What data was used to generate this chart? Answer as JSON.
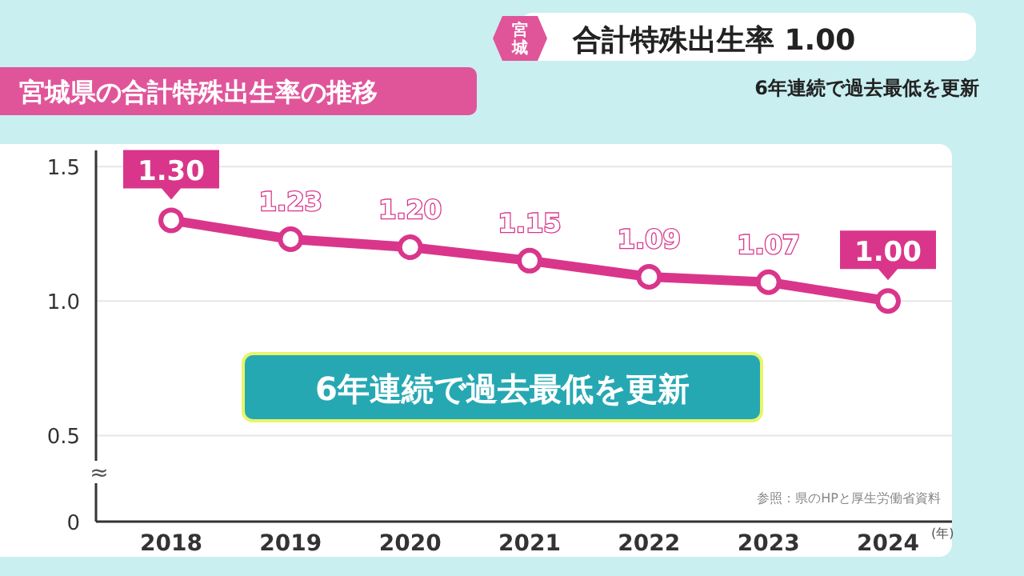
{
  "chart_data": {
    "type": "line",
    "title": "宮城県の合計特殊出生率の推移",
    "subtitle": "6年連続で過去最低を更新",
    "xlabel": "(年)",
    "annotations": [
      "宮城",
      "合計特殊出生率 1.00",
      "6年連続で過去最低を更新",
      "参照：県のHPと厚生労働省資料",
      "≈"
    ],
    "categories": [
      "2018",
      "2019",
      "2020",
      "2021",
      "2022",
      "2023",
      "2024"
    ],
    "series": [
      {
        "color": "#d9368b",
        "values": [
          1.3,
          1.23,
          1.2,
          1.15,
          1.09,
          1.07,
          1.0
        ],
        "value_labels": [
          "1.30",
          "1.23",
          "1.20",
          "1.15",
          "1.09",
          "1.07",
          "1.00"
        ]
      }
    ],
    "ylim": [
      0.18,
      1.56
    ],
    "yticks": [
      {
        "value": 0.18,
        "label": "0"
      },
      0.5,
      {
        "value": 1.0,
        "label": "1.0"
      },
      1.5
    ],
    "grid": "y",
    "marker": "circle"
  }
}
